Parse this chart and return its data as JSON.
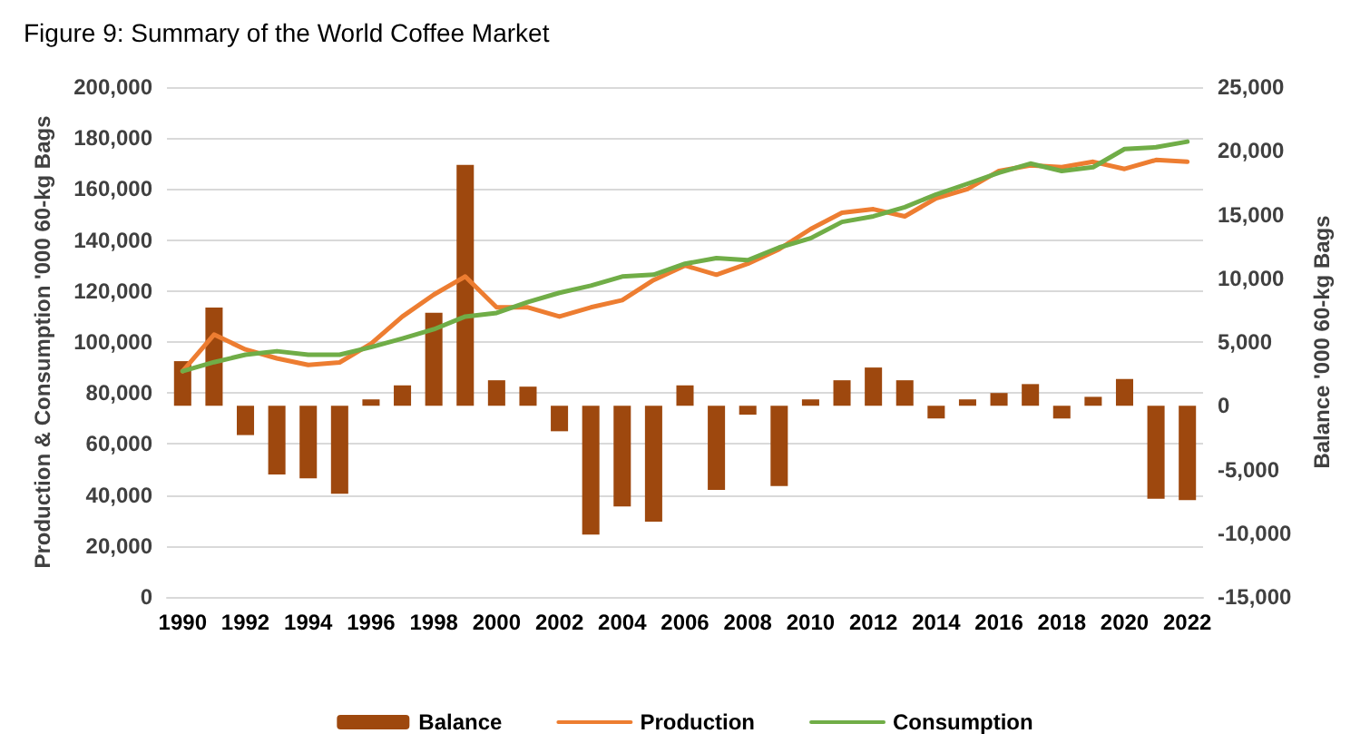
{
  "chart_data": {
    "type": "line",
    "title": "Figure 9: Summary of the World Coffee Market",
    "ylabel": "Production & Consumption '000 60-kg Bags",
    "y2label": "Balance '000 60-kg Bags",
    "categories": [
      "1990",
      null,
      "1992",
      null,
      "1994",
      null,
      "1996",
      null,
      "1998",
      null,
      "2000",
      null,
      "2002",
      null,
      "2004",
      null,
      "2006",
      null,
      "2008",
      null,
      "2010",
      null,
      "2012",
      null,
      "2014",
      null,
      "2016",
      null,
      "2018",
      null,
      "2020",
      null,
      "2022"
    ],
    "series": [
      {
        "name": "Balance",
        "type": "bar",
        "axis": "y2",
        "color": "#9e480e",
        "values": [
          3500,
          7700,
          -2300,
          -5400,
          -5700,
          -6900,
          500,
          1600,
          7300,
          18900,
          2000,
          1500,
          -2000,
          -10100,
          -7900,
          -9100,
          1600,
          -6600,
          -700,
          -6300,
          500,
          2000,
          3000,
          2000,
          -1000,
          500,
          1000,
          1700,
          -1000,
          700,
          2100,
          -7300,
          -7400
        ]
      },
      {
        "name": "Production",
        "color": "#ed7d31",
        "values": [
          88600,
          102900,
          97100,
          93600,
          91000,
          92000,
          99300,
          110000,
          118600,
          125700,
          113600,
          113600,
          110000,
          113600,
          116400,
          124300,
          130000,
          126400,
          130700,
          136400,
          144300,
          150700,
          152100,
          149300,
          156400,
          160000,
          167100,
          169300,
          168600,
          170700,
          167900,
          171400,
          170700
        ]
      },
      {
        "name": "Consumption",
        "color": "#70ad47",
        "values": [
          88600,
          92100,
          95000,
          96400,
          95000,
          95000,
          98000,
          101400,
          105000,
          110000,
          111400,
          115700,
          119300,
          122100,
          125700,
          126400,
          130700,
          132900,
          132100,
          137100,
          140700,
          147100,
          149300,
          152900,
          157900,
          162100,
          166400,
          170000,
          167100,
          168600,
          175700,
          176400,
          178600
        ]
      }
    ],
    "ylim": [
      0,
      200000
    ],
    "yticks": [
      {
        "value": 0,
        "label": "0"
      },
      {
        "value": 20000,
        "label": "20,000"
      },
      {
        "value": 40000,
        "label": "40,000"
      },
      {
        "value": 60000,
        "label": "60,000"
      },
      {
        "value": 80000,
        "label": "80,000"
      },
      {
        "value": 100000,
        "label": "100,000"
      },
      {
        "value": 120000,
        "label": "120,000"
      },
      {
        "value": 140000,
        "label": "140,000"
      },
      {
        "value": 160000,
        "label": "160,000"
      },
      {
        "value": 180000,
        "label": "180,000"
      },
      {
        "value": 200000,
        "label": "200,000"
      }
    ],
    "y2lim": [
      -15000,
      25000
    ],
    "y2ticks": [
      {
        "value": -15000,
        "label": "-15,000"
      },
      {
        "value": -10000,
        "label": "-10,000"
      },
      {
        "value": -5000,
        "label": "-5,000"
      },
      {
        "value": 0,
        "label": "0"
      },
      {
        "value": 5000,
        "label": "5,000"
      },
      {
        "value": 10000,
        "label": "10,000"
      },
      {
        "value": 15000,
        "label": "15,000"
      },
      {
        "value": 20000,
        "label": "20,000"
      },
      {
        "value": 25000,
        "label": "25,000"
      }
    ],
    "grid": "y",
    "legend": "bottom",
    "marker": "none",
    "line_style": "solid"
  }
}
